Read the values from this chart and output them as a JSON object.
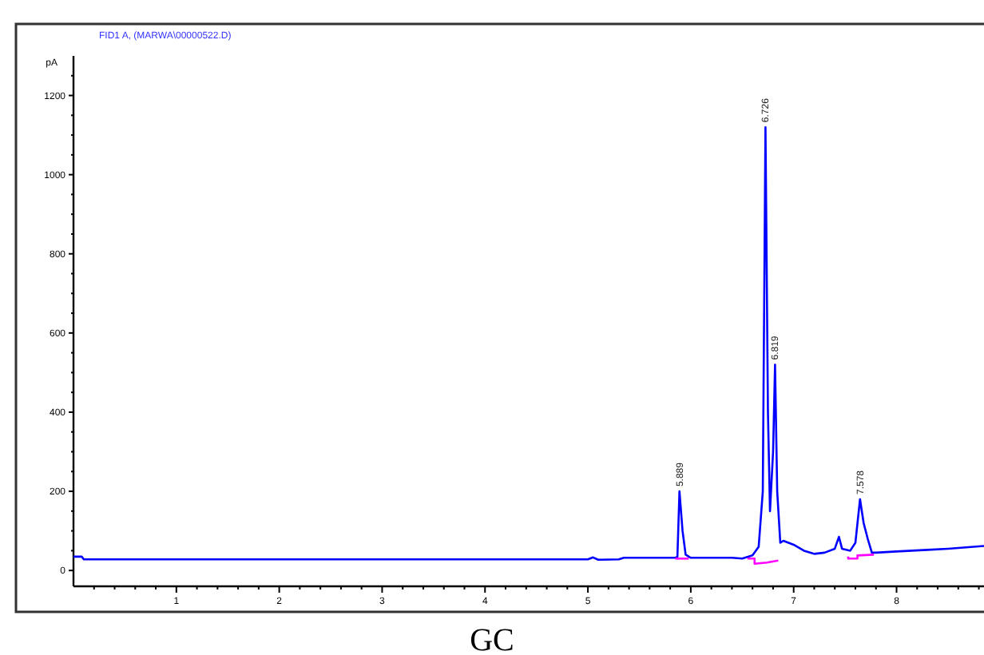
{
  "chart_data": {
    "type": "line",
    "title": "FID1 A,  (MARWA\\00000522.D)",
    "ylabel": "pA",
    "annotations": [
      {
        "text": "5.889",
        "x": 5.889,
        "y": 200
      },
      {
        "text": "6.726",
        "x": 6.726,
        "y": 1120
      },
      {
        "text": "6.819",
        "x": 6.819,
        "y": 520
      },
      {
        "text": "7.578",
        "x": 7.645,
        "y": 180
      },
      "GC"
    ],
    "xlim": [
      0,
      8.85
    ],
    "ylim": [
      -40,
      1300
    ],
    "xticks": [
      {
        "value": 0.2,
        "label": null
      },
      {
        "value": 0.4,
        "label": null
      },
      {
        "value": 0.6,
        "label": null
      },
      {
        "value": 0.8,
        "label": null
      },
      1,
      {
        "value": 1.2,
        "label": null
      },
      {
        "value": 1.4,
        "label": null
      },
      {
        "value": 1.6,
        "label": null
      },
      {
        "value": 1.8,
        "label": null
      },
      2,
      {
        "value": 2.2,
        "label": null
      },
      {
        "value": 2.4,
        "label": null
      },
      {
        "value": 2.6,
        "label": null
      },
      {
        "value": 2.8,
        "label": null
      },
      3,
      {
        "value": 3.2,
        "label": null
      },
      {
        "value": 3.4,
        "label": null
      },
      {
        "value": 3.6,
        "label": null
      },
      {
        "value": 3.8,
        "label": null
      },
      4,
      {
        "value": 4.2,
        "label": null
      },
      {
        "value": 4.4,
        "label": null
      },
      {
        "value": 4.6,
        "label": null
      },
      {
        "value": 4.8,
        "label": null
      },
      5,
      {
        "value": 5.2,
        "label": null
      },
      {
        "value": 5.4,
        "label": null
      },
      {
        "value": 5.6,
        "label": null
      },
      {
        "value": 5.8,
        "label": null
      },
      6,
      {
        "value": 6.2,
        "label": null
      },
      {
        "value": 6.4,
        "label": null
      },
      {
        "value": 6.6,
        "label": null
      },
      {
        "value": 6.8,
        "label": null
      },
      7,
      {
        "value": 7.2,
        "label": null
      },
      {
        "value": 7.4,
        "label": null
      },
      {
        "value": 7.6,
        "label": null
      },
      {
        "value": 7.8,
        "label": null
      },
      8,
      {
        "value": 8.2,
        "label": null
      },
      {
        "value": 8.4,
        "label": null
      },
      {
        "value": 8.6,
        "label": null
      },
      {
        "value": 8.8,
        "label": null
      }
    ],
    "yticks": [
      0,
      {
        "value": 50,
        "label": null
      },
      {
        "value": 100,
        "label": null
      },
      {
        "value": 150,
        "label": null
      },
      200,
      {
        "value": 250,
        "label": null
      },
      {
        "value": 300,
        "label": null
      },
      {
        "value": 350,
        "label": null
      },
      400,
      {
        "value": 450,
        "label": null
      },
      {
        "value": 500,
        "label": null
      },
      {
        "value": 550,
        "label": null
      },
      600,
      {
        "value": 650,
        "label": null
      },
      {
        "value": 700,
        "label": null
      },
      {
        "value": 750,
        "label": null
      },
      800,
      {
        "value": 850,
        "label": null
      },
      {
        "value": 900,
        "label": null
      },
      {
        "value": 950,
        "label": null
      },
      1000,
      {
        "value": 1050,
        "label": null
      },
      {
        "value": 1100,
        "label": null
      },
      {
        "value": 1150,
        "label": null
      },
      1200,
      {
        "value": 1250,
        "label": null
      }
    ],
    "grid": false,
    "line_style": "solid",
    "series": [
      {
        "color": "#0000ff",
        "x": [
          0,
          0.08,
          0.1,
          5.0,
          5.05,
          5.1,
          5.3,
          5.35,
          5.85,
          5.87,
          5.89,
          5.92,
          5.95,
          6.0,
          6.4,
          6.5,
          6.6,
          6.66,
          6.7,
          6.726,
          6.75,
          6.77,
          6.8,
          6.819,
          6.84,
          6.87,
          6.9,
          7.0,
          7.1,
          7.2,
          7.3,
          7.4,
          7.44,
          7.47,
          7.55,
          7.6,
          7.645,
          7.68,
          7.72,
          7.76,
          7.8,
          8.0,
          8.3,
          8.5,
          8.85
        ],
        "values": [
          35,
          35,
          28,
          28,
          33,
          27,
          28,
          32,
          32,
          35,
          200,
          100,
          40,
          32,
          32,
          30,
          38,
          60,
          200,
          1120,
          400,
          150,
          300,
          520,
          200,
          70,
          75,
          65,
          50,
          42,
          45,
          55,
          85,
          55,
          50,
          70,
          180,
          120,
          80,
          45,
          45,
          48,
          52,
          55,
          62
        ]
      },
      {
        "color": "#ff00ff",
        "x": [
          5.85,
          5.98
        ],
        "values": [
          30,
          30
        ]
      },
      {
        "color": "#ff00ff",
        "x": [
          6.55,
          6.62,
          6.62,
          6.74,
          6.85
        ],
        "values": [
          30,
          30,
          17,
          20,
          25
        ]
      },
      {
        "color": "#ff00ff",
        "x": [
          7.53,
          7.53,
          7.62,
          7.62,
          7.78
        ],
        "values": [
          35,
          30,
          30,
          38,
          40
        ]
      }
    ]
  }
}
